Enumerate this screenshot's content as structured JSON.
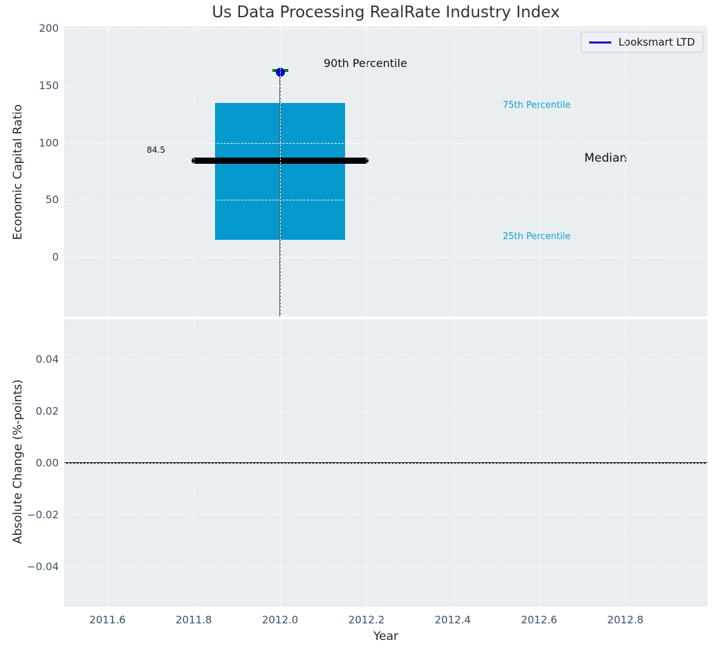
{
  "title": "Us Data Processing RealRate Industry Index",
  "legend": {
    "label": "Looksmart LTD",
    "line_color": "#1414cc"
  },
  "top_chart": {
    "ylabel": "Economic Capital Ratio",
    "annotations": {
      "p90": "90th Percentile",
      "p75": "75th Percentile",
      "median": "Median",
      "p25": "25th Percentile",
      "median_value": "84.5"
    }
  },
  "bottom_chart": {
    "ylabel": "Absolute Change (%-points)"
  },
  "x_axis": {
    "label": "Year"
  },
  "colors": {
    "axes_background": "#e9eef0",
    "grid": "#ffffff",
    "box_fill": "#0499ce",
    "median_line": "#000000",
    "whisker": "#5a5a5a",
    "cap_90th": "#007a00",
    "company_dot": "#0000d2",
    "tick_label": "#3d4f68",
    "annotation_cyan": "#179fd4",
    "legend_line": "#1414cc"
  },
  "chart_data": [
    {
      "type": "boxplot",
      "title": "Us Data Processing RealRate Industry Index",
      "ylabel": "Economic Capital Ratio",
      "xlabel": "Year",
      "grid": true,
      "legend_position": "upper right",
      "legend_entries": [
        "Looksmart LTD"
      ],
      "ylim": [
        -52,
        202
      ],
      "xlim": [
        2011.5,
        2012.99
      ],
      "yticks": [
        0,
        50,
        100,
        150,
        200
      ],
      "xticks": [
        2011.6,
        2011.8,
        2012.0,
        2012.2,
        2012.4,
        2012.6,
        2012.8
      ],
      "box": {
        "x_center": 2012.0,
        "q1": 15,
        "median": 84.5,
        "q3": 135,
        "p90": 163,
        "company_value": 162,
        "box_halfwidth_years": 0.15,
        "median_halfwidth_years": 0.205,
        "whisker_low_clipped_below_axis": true
      },
      "annotations": [
        {
          "text": "90th Percentile",
          "color": "#111111"
        },
        {
          "text": "75th Percentile",
          "color": "#179fd4"
        },
        {
          "text": "Median",
          "color": "#111111"
        },
        {
          "text": "25th Percentile",
          "color": "#179fd4"
        },
        {
          "text": "84.5",
          "color": "#111111",
          "value": 84.5
        }
      ]
    },
    {
      "type": "line",
      "ylabel": "Absolute Change (%-points)",
      "xlabel": "Year",
      "grid": true,
      "ylim": [
        -0.0555,
        0.0555
      ],
      "xlim": [
        2011.5,
        2012.99
      ],
      "yticks": [
        0.04,
        0.02,
        0.0,
        -0.02,
        -0.04
      ],
      "ytick_labels": [
        "0.04",
        "0.02",
        "0.00",
        "−0.02",
        "−0.04"
      ],
      "xticks": [
        2011.6,
        2011.8,
        2012.0,
        2012.2,
        2012.4,
        2012.6,
        2012.8
      ],
      "xtick_labels": [
        "2011.6",
        "2011.8",
        "2012.0",
        "2012.2",
        "2012.4",
        "2012.6",
        "2012.8"
      ],
      "zero_line": 0.0,
      "series": [
        {
          "name": "Looksmart LTD",
          "x": [],
          "y": []
        }
      ]
    }
  ]
}
